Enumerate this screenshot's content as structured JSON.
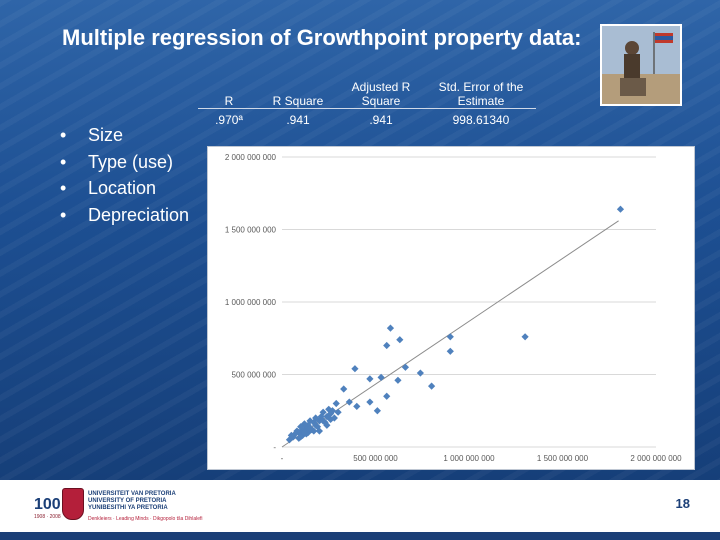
{
  "slide": {
    "title": "Multiple regression of Growthpoint property data:",
    "bullets": [
      "Size",
      "Type (use)",
      "Location",
      "Depreciation"
    ],
    "page_number": "18"
  },
  "model_summary": {
    "headers": [
      "R",
      "R Square",
      "Adjusted R Square",
      "Std. Error of the Estimate"
    ],
    "values": [
      ".970ª",
      ".941",
      ".941",
      "998.61340"
    ]
  },
  "footer": {
    "logo_number": "100",
    "logo_years": "1908 · 2008",
    "university_lines": [
      "UNIVERSITEIT VAN PRETORIA",
      "UNIVERSITY OF PRETORIA",
      "YUNIBESITHI YA PRETORIA"
    ],
    "motto": "Denkleiers · Leading Minds · Dikgopolo tša Dihlalefi"
  },
  "chart_data": {
    "type": "scatter",
    "title": "",
    "xlabel": "",
    "ylabel": "",
    "xlim": [
      0,
      2000000000
    ],
    "ylim": [
      0,
      2000000000
    ],
    "x_ticks": [
      0,
      500000000,
      1000000000,
      1500000000,
      2000000000
    ],
    "x_tick_labels": [
      "-",
      "500 000 000",
      "1 000 000 000",
      "1 500 000 000",
      "2 000 000 000"
    ],
    "y_ticks": [
      0,
      500000000,
      1000000000,
      1500000000,
      2000000000
    ],
    "y_tick_labels": [
      "-",
      "500 000 000",
      "1 000 000 000",
      "1 500 000 000",
      "2 000 000 000"
    ],
    "grid": "horizontal",
    "marker_color": "#4f81bd",
    "trendline": {
      "x": [
        0,
        1800000000
      ],
      "y": [
        0,
        1560000000
      ]
    },
    "points": [
      [
        1810000000,
        1640000000
      ],
      [
        1300000000,
        760000000
      ],
      [
        900000000,
        760000000
      ],
      [
        900000000,
        660000000
      ],
      [
        580000000,
        820000000
      ],
      [
        630000000,
        740000000
      ],
      [
        560000000,
        700000000
      ],
      [
        660000000,
        550000000
      ],
      [
        740000000,
        510000000
      ],
      [
        800000000,
        420000000
      ],
      [
        620000000,
        460000000
      ],
      [
        530000000,
        480000000
      ],
      [
        390000000,
        540000000
      ],
      [
        470000000,
        470000000
      ],
      [
        330000000,
        400000000
      ],
      [
        560000000,
        350000000
      ],
      [
        470000000,
        310000000
      ],
      [
        510000000,
        250000000
      ],
      [
        360000000,
        310000000
      ],
      [
        400000000,
        280000000
      ],
      [
        290000000,
        300000000
      ],
      [
        300000000,
        240000000
      ],
      [
        270000000,
        250000000
      ],
      [
        250000000,
        260000000
      ],
      [
        220000000,
        240000000
      ],
      [
        240000000,
        210000000
      ],
      [
        210000000,
        210000000
      ],
      [
        200000000,
        180000000
      ],
      [
        180000000,
        200000000
      ],
      [
        170000000,
        170000000
      ],
      [
        150000000,
        180000000
      ],
      [
        140000000,
        150000000
      ],
      [
        130000000,
        130000000
      ],
      [
        120000000,
        160000000
      ],
      [
        110000000,
        120000000
      ],
      [
        100000000,
        140000000
      ],
      [
        90000000,
        100000000
      ],
      [
        80000000,
        110000000
      ],
      [
        70000000,
        90000000
      ],
      [
        60000000,
        70000000
      ],
      [
        50000000,
        80000000
      ],
      [
        40000000,
        50000000
      ],
      [
        160000000,
        120000000
      ],
      [
        190000000,
        140000000
      ],
      [
        230000000,
        170000000
      ],
      [
        260000000,
        190000000
      ],
      [
        280000000,
        200000000
      ],
      [
        140000000,
        100000000
      ],
      [
        110000000,
        80000000
      ],
      [
        200000000,
        110000000
      ],
      [
        240000000,
        150000000
      ],
      [
        170000000,
        110000000
      ],
      [
        130000000,
        90000000
      ],
      [
        90000000,
        60000000
      ],
      [
        220000000,
        180000000
      ],
      [
        120000000,
        100000000
      ],
      [
        100000000,
        70000000
      ],
      [
        260000000,
        230000000
      ],
      [
        180000000,
        150000000
      ],
      [
        150000000,
        130000000
      ]
    ]
  }
}
